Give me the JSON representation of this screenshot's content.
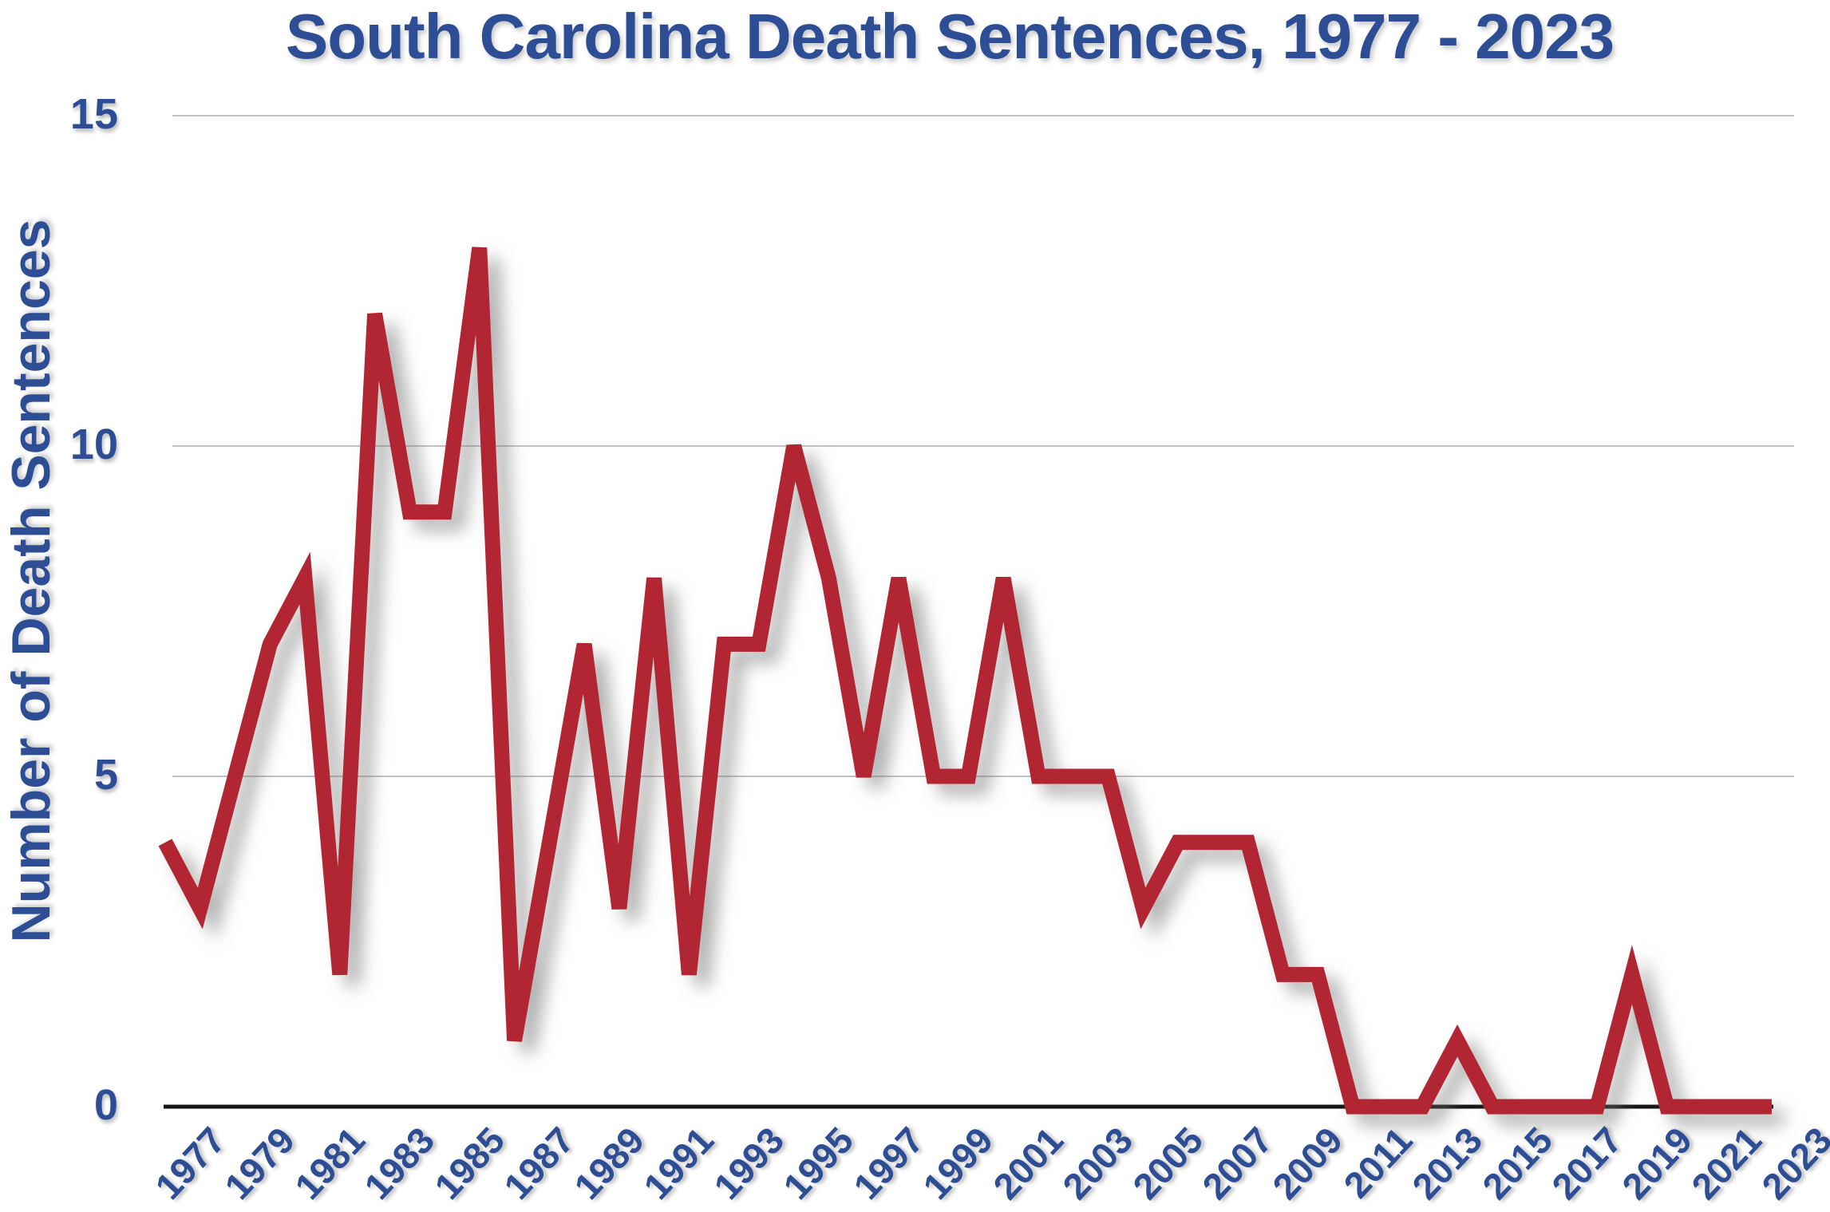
{
  "chart_data": {
    "type": "line",
    "title": "South Carolina Death Sentences, 1977 - 2023",
    "ylabel": "Number of Death Sentences",
    "xlabel": "",
    "series_name": "Death Sentences",
    "x": [
      1977,
      1978,
      1979,
      1980,
      1981,
      1982,
      1983,
      1984,
      1985,
      1986,
      1987,
      1988,
      1989,
      1990,
      1991,
      1992,
      1993,
      1994,
      1995,
      1996,
      1997,
      1998,
      1999,
      2000,
      2001,
      2002,
      2003,
      2004,
      2005,
      2006,
      2007,
      2008,
      2009,
      2010,
      2011,
      2012,
      2013,
      2014,
      2015,
      2016,
      2017,
      2018,
      2019,
      2020,
      2021,
      2022,
      2023
    ],
    "values": [
      4,
      3,
      5,
      7,
      8,
      2,
      12,
      9,
      9,
      13,
      1,
      4,
      7,
      3,
      8,
      2,
      7,
      7,
      10,
      8,
      5,
      8,
      5,
      5,
      8,
      5,
      5,
      5,
      3,
      4,
      4,
      4,
      2,
      2,
      0,
      0,
      0,
      1,
      0,
      0,
      0,
      0,
      2,
      0,
      0,
      0,
      0
    ],
    "yticks": [
      0,
      5,
      10,
      15
    ],
    "ylim": [
      0,
      15
    ],
    "xtick_labels": [
      "1977",
      "1979",
      "1981",
      "1983",
      "1985",
      "1987",
      "1989",
      "1991",
      "1993",
      "1995",
      "1997",
      "1999",
      "2001",
      "2003",
      "2005",
      "2007",
      "2009",
      "2011",
      "2013",
      "2015",
      "2017",
      "2019",
      "2021",
      "2023"
    ],
    "grid": "horizontal-gridlines-at-5-10-15",
    "legend": "none",
    "line_color": "#b12731",
    "label_color": "#2d4d94",
    "gridline_color": "#c1c1c1",
    "axis_color": "#151515",
    "background_color": "#ffffff"
  }
}
